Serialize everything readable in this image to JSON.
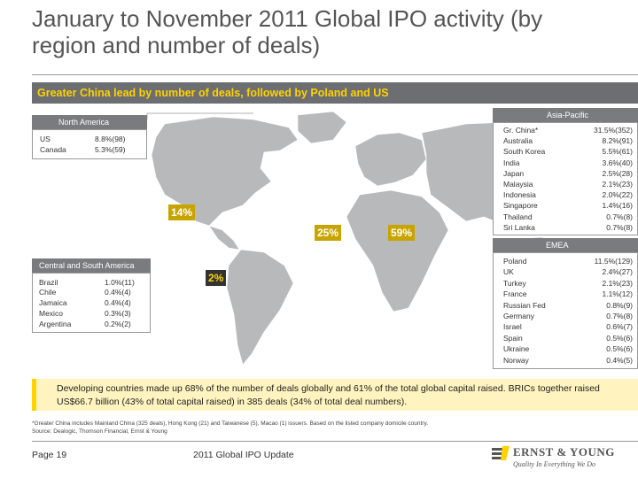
{
  "title": "January to November 2011 Global IPO activity (by region and number of deals)",
  "banner": "Greater China lead by number of deals, followed by Poland and US",
  "north_america": {
    "header": "North America",
    "rows": [
      {
        "country": "US",
        "value": "8.8%(98)"
      },
      {
        "country": "Canada",
        "value": "5.3%(59)"
      }
    ],
    "region_pct": "14%"
  },
  "central_south_america": {
    "header": "Central and South America",
    "rows": [
      {
        "country": "Brazil",
        "value": "1.0%(11)"
      },
      {
        "country": "Chile",
        "value": "0.4%(4)"
      },
      {
        "country": "Jamaica",
        "value": "0.4%(4)"
      },
      {
        "country": "Mexico",
        "value": "0.3%(3)"
      },
      {
        "country": "Argentina",
        "value": "0.2%(2)"
      }
    ],
    "region_pct": "2%"
  },
  "emea_pct": "25%",
  "asia_pct": "59%",
  "asia_pacific": {
    "header": "Asia-Pacific",
    "rows": [
      {
        "country": "Gr. China*",
        "value": "31.5%(352)"
      },
      {
        "country": "Australia",
        "value": "8.2%(91)"
      },
      {
        "country": "South Korea",
        "value": "5.5%(61)"
      },
      {
        "country": "India",
        "value": "3.6%(40)"
      },
      {
        "country": "Japan",
        "value": "2.5%(28)"
      },
      {
        "country": "Malaysia",
        "value": "2.1%(23)"
      },
      {
        "country": "Indonesia",
        "value": "2.0%(22)"
      },
      {
        "country": "Singapore",
        "value": "1.4%(16)"
      },
      {
        "country": "Thailand",
        "value": "0.7%(8)"
      },
      {
        "country": "Sri Lanka",
        "value": "0.7%(8)"
      }
    ]
  },
  "emea": {
    "header": "EMEA",
    "rows": [
      {
        "country": "Poland",
        "value": "11.5%(129)"
      },
      {
        "country": "UK",
        "value": "2.4%(27)"
      },
      {
        "country": "Turkey",
        "value": "2.1%(23)"
      },
      {
        "country": "France",
        "value": "1.1%(12)"
      },
      {
        "country": "Russian Fed",
        "value": "0.8%(9)"
      },
      {
        "country": "Germany",
        "value": "0.7%(8)"
      },
      {
        "country": "Israel",
        "value": "0.6%(7)"
      },
      {
        "country": "Spain",
        "value": "0.5%(6)"
      },
      {
        "country": "Ukraine",
        "value": "0.5%(6)"
      },
      {
        "country": "Norway",
        "value": "0.4%(5)"
      }
    ]
  },
  "footer_note": "Developing countries made up 68% of the number of deals globally and 61% of the total global capital raised. BRICs together raised US$66.7 billion (43% of total capital raised) in 385 deals (34% of total deal numbers).",
  "small_note_1": "*Greater China includes Mainland China (325 deals), Hong Kong (21) and Taiwanese (5), Macao (1) issuers. Based on the listed company domicile country.",
  "small_note_2": "Source: Dealogic, Thomson Financial, Ernst & Young",
  "page": "Page 19",
  "doc_title": "2011 Global IPO Update",
  "logo_name": "ERNST & YOUNG",
  "logo_tagline": "Quality In Everything We Do",
  "colors": {
    "accent": "#ffd200",
    "banner": "#6d6e71",
    "map_land": "#b8b9bb"
  }
}
